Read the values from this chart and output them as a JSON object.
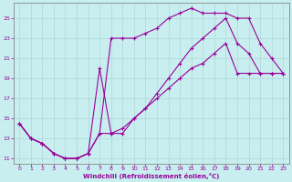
{
  "xlabel": "Windchill (Refroidissement éolien,°C)",
  "bg_color": "#c8eef0",
  "line_color": "#990099",
  "grid_color": "#b0d8d8",
  "xlim": [
    -0.5,
    23.5
  ],
  "ylim": [
    10.5,
    26.5
  ],
  "yticks": [
    11,
    13,
    15,
    17,
    19,
    21,
    23,
    25
  ],
  "xticks": [
    0,
    1,
    2,
    3,
    4,
    5,
    6,
    7,
    8,
    9,
    10,
    11,
    12,
    13,
    14,
    15,
    16,
    17,
    18,
    19,
    20,
    21,
    22,
    23
  ],
  "line1_x": [
    0,
    1,
    2,
    3,
    4,
    5,
    6,
    7,
    8,
    9,
    10,
    11,
    12,
    13,
    14,
    15,
    16,
    17,
    18,
    19,
    20,
    21,
    22,
    23
  ],
  "line1_y": [
    14.5,
    13.0,
    12.5,
    11.5,
    11.0,
    11.0,
    11.5,
    13.5,
    23.0,
    23.0,
    23.0,
    23.5,
    24.0,
    25.0,
    25.5,
    26.0,
    25.5,
    25.5,
    25.5,
    25.0,
    25.0,
    22.5,
    21.0,
    19.5
  ],
  "line2_x": [
    0,
    1,
    2,
    3,
    4,
    5,
    6,
    7,
    8,
    9,
    10,
    11,
    12,
    13,
    14,
    15,
    16,
    17,
    18,
    19,
    20,
    21,
    22,
    23
  ],
  "line2_y": [
    14.5,
    13.0,
    12.5,
    11.5,
    11.0,
    11.0,
    11.5,
    20.0,
    13.5,
    13.5,
    15.0,
    16.0,
    17.5,
    19.0,
    20.5,
    22.0,
    23.0,
    24.0,
    25.0,
    22.5,
    21.5,
    19.5,
    19.5,
    19.5
  ],
  "line3_x": [
    0,
    1,
    2,
    3,
    4,
    5,
    6,
    7,
    8,
    9,
    10,
    11,
    12,
    13,
    14,
    15,
    16,
    17,
    18,
    19,
    20,
    21,
    22,
    23
  ],
  "line3_y": [
    14.5,
    13.0,
    12.5,
    11.5,
    11.0,
    11.0,
    11.5,
    13.5,
    13.5,
    14.0,
    15.0,
    16.0,
    17.0,
    18.0,
    19.0,
    20.0,
    20.5,
    21.5,
    22.5,
    19.5,
    19.5,
    19.5,
    19.5,
    19.5
  ]
}
